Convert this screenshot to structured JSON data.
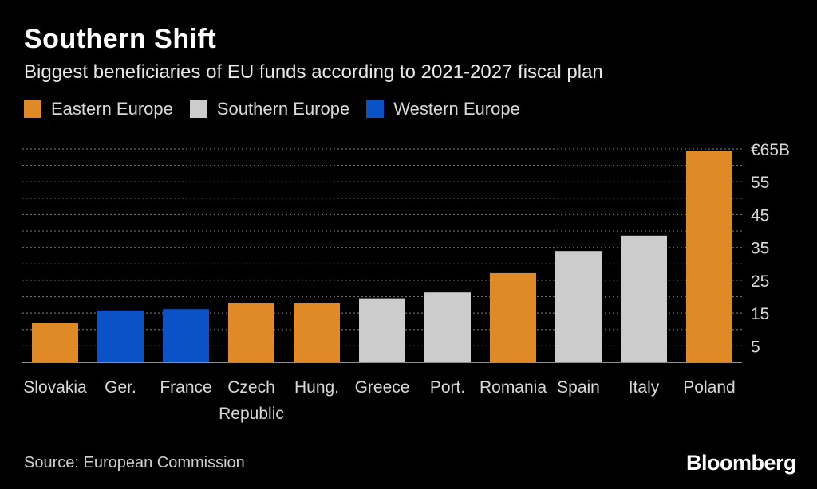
{
  "header": {
    "title": "Southern Shift",
    "subtitle": "Biggest beneficiaries of EU funds according to 2021-2027 fiscal plan"
  },
  "legend": [
    {
      "label": "Eastern Europe",
      "color": "#e08a27"
    },
    {
      "label": "Southern Europe",
      "color": "#cccccc"
    },
    {
      "label": "Western Europe",
      "color": "#0a52c6"
    }
  ],
  "chart_data": {
    "type": "bar",
    "categories": [
      "Slovakia",
      "Ger.",
      "France",
      "Czech\nRepublic",
      "Hung.",
      "Greece",
      "Port.",
      "Romania",
      "Spain",
      "Italy",
      "Poland"
    ],
    "values": [
      12,
      15.8,
      16.2,
      18,
      18,
      19.5,
      21.3,
      27.2,
      33.9,
      38.6,
      64.4
    ],
    "groups": [
      "Eastern Europe",
      "Western Europe",
      "Western Europe",
      "Eastern Europe",
      "Eastern Europe",
      "Southern Europe",
      "Southern Europe",
      "Eastern Europe",
      "Southern Europe",
      "Southern Europe",
      "Eastern Europe"
    ],
    "ylim": [
      0,
      65
    ],
    "yticks": [
      5,
      15,
      25,
      35,
      45,
      55,
      65
    ],
    "ytick_labels": [
      "5",
      "15",
      "25",
      "35",
      "45",
      "55",
      "€65B"
    ],
    "grid": true,
    "legend_position": "top-left"
  },
  "footer": {
    "source": "Source: European Commission",
    "brand": "Bloomberg"
  }
}
